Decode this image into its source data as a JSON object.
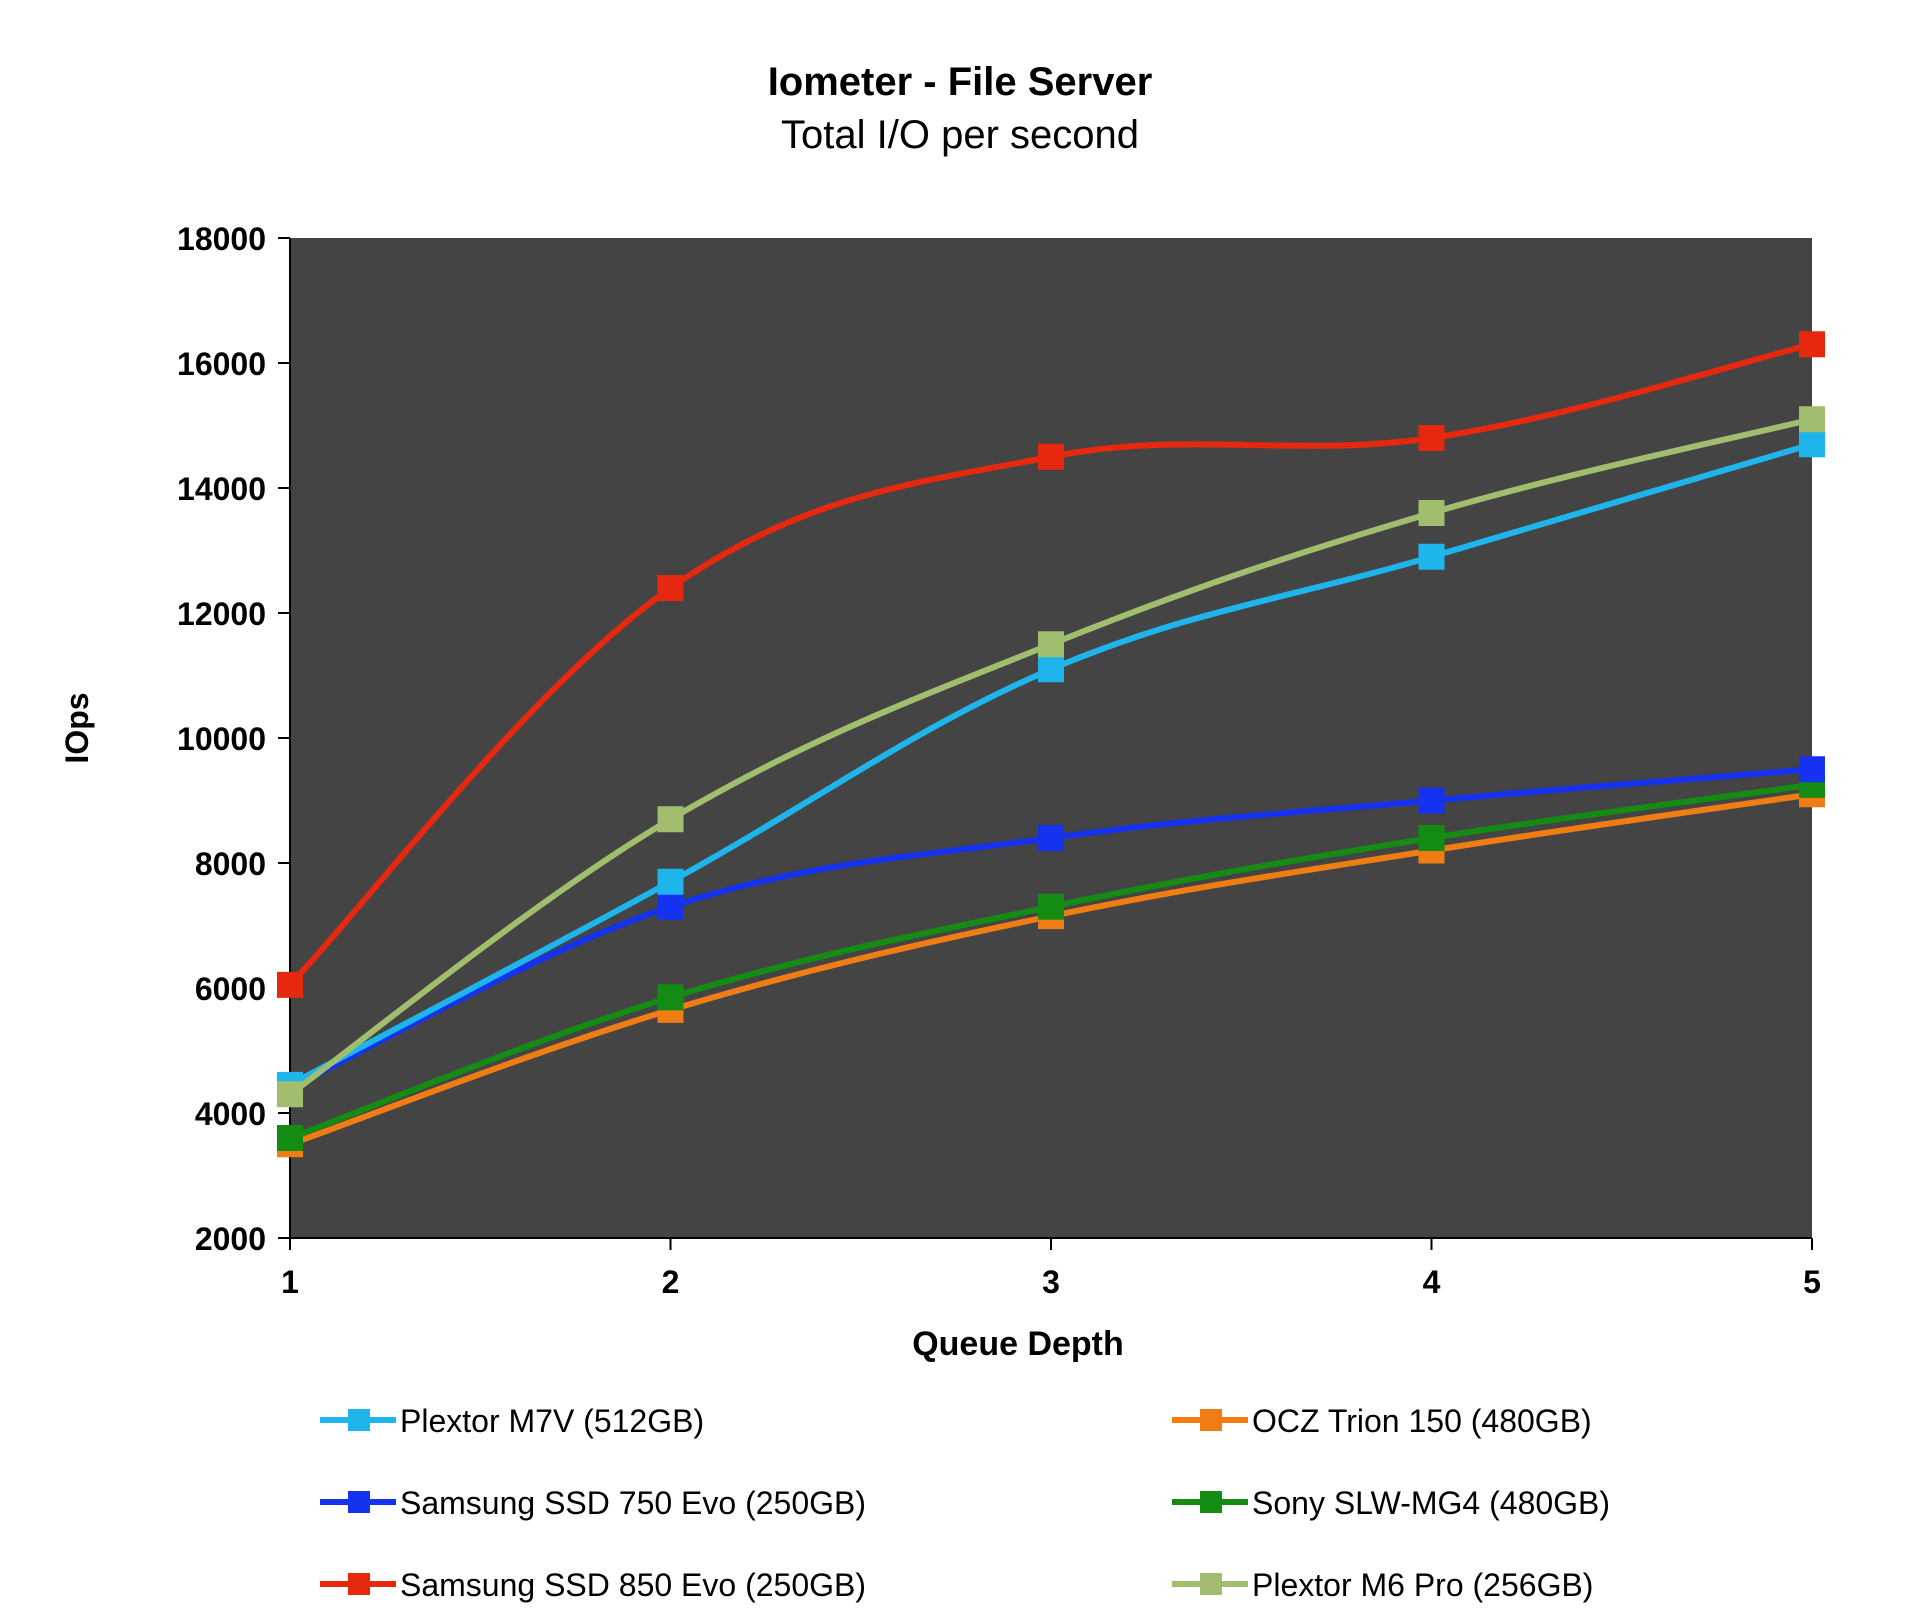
{
  "chart_data": {
    "type": "line",
    "title": "Iometer - File Server",
    "subtitle": "Total I/O per second",
    "xlabel": "Queue Depth",
    "ylabel": "IOps",
    "x": [
      1,
      2,
      3,
      4,
      5
    ],
    "x_tick_labels": [
      "1",
      "2",
      "3",
      "4",
      "5"
    ],
    "ylim": [
      2000,
      18000
    ],
    "y_ticks": [
      2000,
      4000,
      6000,
      8000,
      10000,
      12000,
      14000,
      16000,
      18000
    ],
    "y_tick_labels": [
      "2000",
      "4000",
      "6000",
      "8000",
      "10000",
      "12000",
      "14000",
      "16000",
      "18000"
    ],
    "grid": false,
    "plot_background": "#444444",
    "legend_position": "bottom",
    "series": [
      {
        "name": "Plextor M7V (512GB)",
        "color": "#1EB4EC",
        "values": [
          4450,
          7700,
          11100,
          12900,
          14700
        ]
      },
      {
        "name": "OCZ Trion 150 (480GB)",
        "color": "#F07D14",
        "values": [
          3500,
          5650,
          7150,
          8200,
          9100
        ]
      },
      {
        "name": "Samsung SSD 750 Evo (250GB)",
        "color": "#1432F0",
        "values": [
          4400,
          7300,
          8400,
          9000,
          9500
        ]
      },
      {
        "name": "Sony SLW-MG4 (480GB)",
        "color": "#148C14",
        "values": [
          3600,
          5850,
          7300,
          8400,
          9250
        ]
      },
      {
        "name": "Samsung SSD 850 Evo (250GB)",
        "color": "#E6280F",
        "values": [
          6050,
          12400,
          14500,
          14800,
          16300
        ]
      },
      {
        "name": "Plextor M6 Pro (256GB)",
        "color": "#A0BE6E",
        "values": [
          4300,
          8700,
          11500,
          13600,
          15100
        ]
      }
    ]
  }
}
